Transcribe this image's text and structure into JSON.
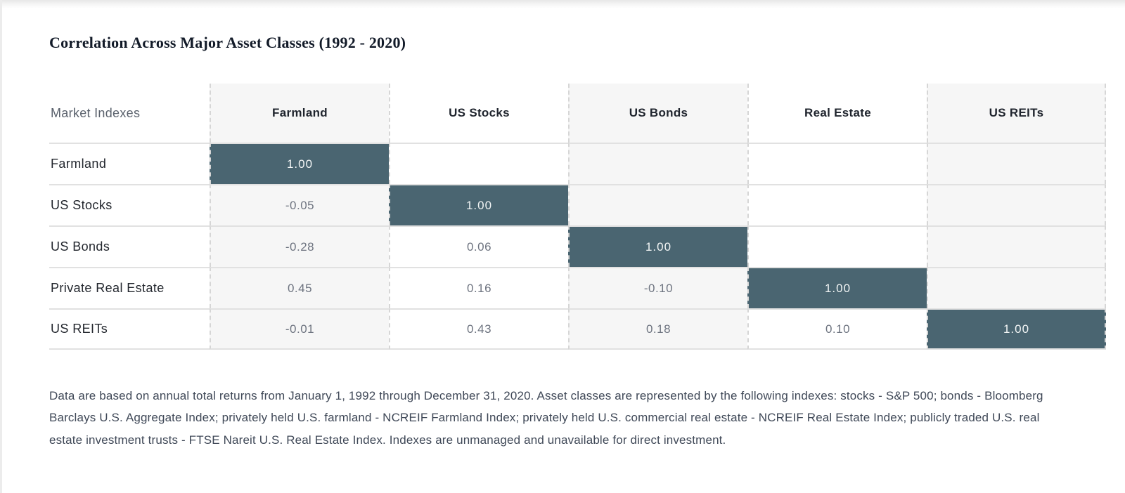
{
  "title": "Correlation Across Major Asset Classes (1992 - 2020)",
  "table": {
    "corner_label": "Market Indexes",
    "columns": [
      "Farmland",
      "US Stocks",
      "US Bonds",
      "Real Estate",
      "US REITs"
    ],
    "rows": [
      {
        "label": "Farmland",
        "values": [
          "1.00",
          "",
          "",
          "",
          ""
        ]
      },
      {
        "label": "US Stocks",
        "values": [
          "-0.05",
          "1.00",
          "",
          "",
          ""
        ]
      },
      {
        "label": "US Bonds",
        "values": [
          "-0.28",
          "0.06",
          "1.00",
          "",
          ""
        ]
      },
      {
        "label": "Private Real Estate",
        "values": [
          "0.45",
          "0.16",
          "-0.10",
          "1.00",
          ""
        ]
      },
      {
        "label": "US REITs",
        "values": [
          "-0.01",
          "0.43",
          "0.18",
          "0.10",
          "1.00"
        ]
      }
    ]
  },
  "chart_data": {
    "type": "heatmap",
    "title": "Correlation Across Major Asset Classes (1992 - 2020)",
    "row_header": "Market Indexes",
    "columns": [
      "Farmland",
      "US Stocks",
      "US Bonds",
      "Real Estate",
      "US REITs"
    ],
    "rows": [
      "Farmland",
      "US Stocks",
      "US Bonds",
      "Private Real Estate",
      "US REITs"
    ],
    "values": [
      [
        1.0,
        null,
        null,
        null,
        null
      ],
      [
        -0.05,
        1.0,
        null,
        null,
        null
      ],
      [
        -0.28,
        0.06,
        1.0,
        null,
        null
      ],
      [
        0.45,
        0.16,
        -0.1,
        1.0,
        null
      ],
      [
        -0.01,
        0.43,
        0.18,
        0.1,
        1.0
      ]
    ],
    "legend_position": "none",
    "grid": "dashed-vertical, solid-horizontal",
    "diagonal_highlight_color": "#4a6571",
    "stripe_color": "#f6f6f6"
  },
  "footnote": "Data are based on annual total returns from January 1, 1992 through December 31, 2020. Asset classes are represented by the following indexes: stocks - S&P 500; bonds - Bloomberg Barclays U.S. Aggregate Index; privately held U.S. farmland - NCREIF Farmland Index; privately held U.S. commercial real estate - NCREIF Real Estate Index; publicly traded U.S. real estate investment trusts - FTSE Nareit U.S. Real Estate Index. Indexes are unmanaged and unavailable for direct investment.",
  "colors": {
    "highlight": "#4a6571",
    "stripe": "#f6f6f6",
    "row_line": "#e1e1e1",
    "dashed_line": "#d6d6d6",
    "value_text": "#6e7480",
    "label_text": "#23272e"
  }
}
